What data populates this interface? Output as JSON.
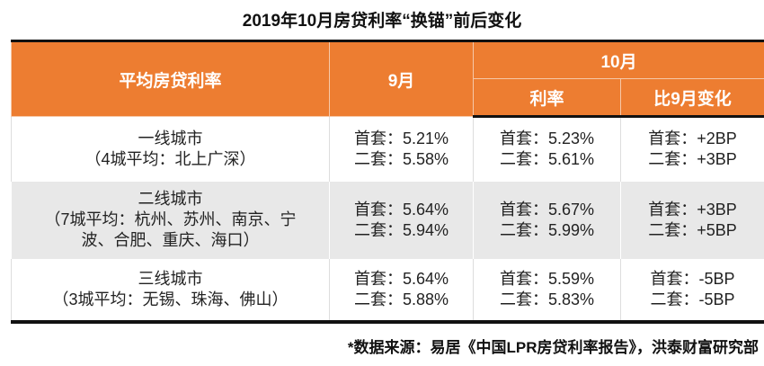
{
  "title": "2019年10月房贷利率“换锚”前后变化",
  "header": {
    "col1": "平均房贷利率",
    "col2": "9月",
    "col3_group": "10月",
    "col3a": "利率",
    "col3b": "比9月变化"
  },
  "rows": [
    {
      "city": "一线城市",
      "detail": "（4城平均：北上广深）",
      "sep_first": "首套：5.21%",
      "sep_second": "二套：5.58%",
      "oct_first": "首套：5.23%",
      "oct_second": "二套：5.61%",
      "chg_first": "首套：+2BP",
      "chg_second": "二套：+3BP"
    },
    {
      "city": "二线城市",
      "detail": "（7城平均：杭州、苏州、南京、宁波、合肥、重庆、海口）",
      "sep_first": "首套：5.64%",
      "sep_second": "二套：5.94%",
      "oct_first": "首套：5.67%",
      "oct_second": "二套：5.99%",
      "chg_first": "首套：+3BP",
      "chg_second": "二套：+5BP"
    },
    {
      "city": "三线城市",
      "detail": "（3城平均：无锡、珠海、佛山）",
      "sep_first": "首套：5.64%",
      "sep_second": "二套：5.88%",
      "oct_first": "首套：5.59%",
      "oct_second": "二套：5.83%",
      "chg_first": "首套：-5BP",
      "chg_second": "二套：-5BP"
    }
  ],
  "source": "*数据来源：易居《中国LPR房贷利率报告》，洪泰财富研究部",
  "colors": {
    "header": "#ed7d31",
    "stripe": "#e8e8e8"
  }
}
